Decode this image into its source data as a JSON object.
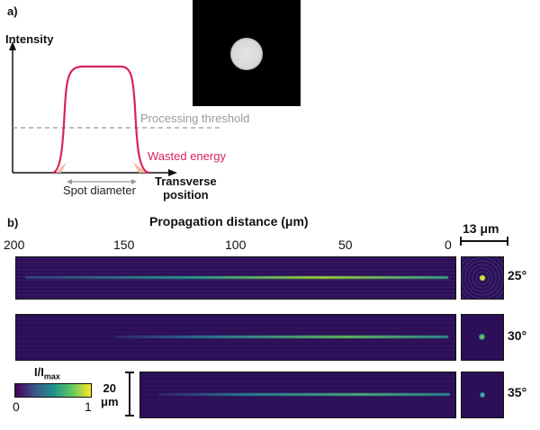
{
  "panel_a": {
    "label": "a)",
    "y_axis_label": "Intensity",
    "x_axis_label_line1": "Transverse",
    "x_axis_label_line2": "position",
    "threshold_label": "Processing threshold",
    "wasted_label": "Wasted energy",
    "spot_label": "Spot diameter",
    "colors": {
      "curve": "#d8245c",
      "threshold": "#9a9a9a",
      "wasted": "#f4b8a0"
    }
  },
  "panel_b": {
    "label": "b)",
    "x_axis_label": "Propagation distance (μm)",
    "ticks": [
      "200",
      "150",
      "100",
      "50",
      "0"
    ],
    "scale_label": "13 μm",
    "vertical_scale_line1": "20",
    "vertical_scale_line2": "μm",
    "colorbar_title_main": "I/I",
    "colorbar_title_sub": "max",
    "colorbar_min": "0",
    "colorbar_max": "1",
    "angles": [
      "25°",
      "30°",
      "35°"
    ]
  }
}
